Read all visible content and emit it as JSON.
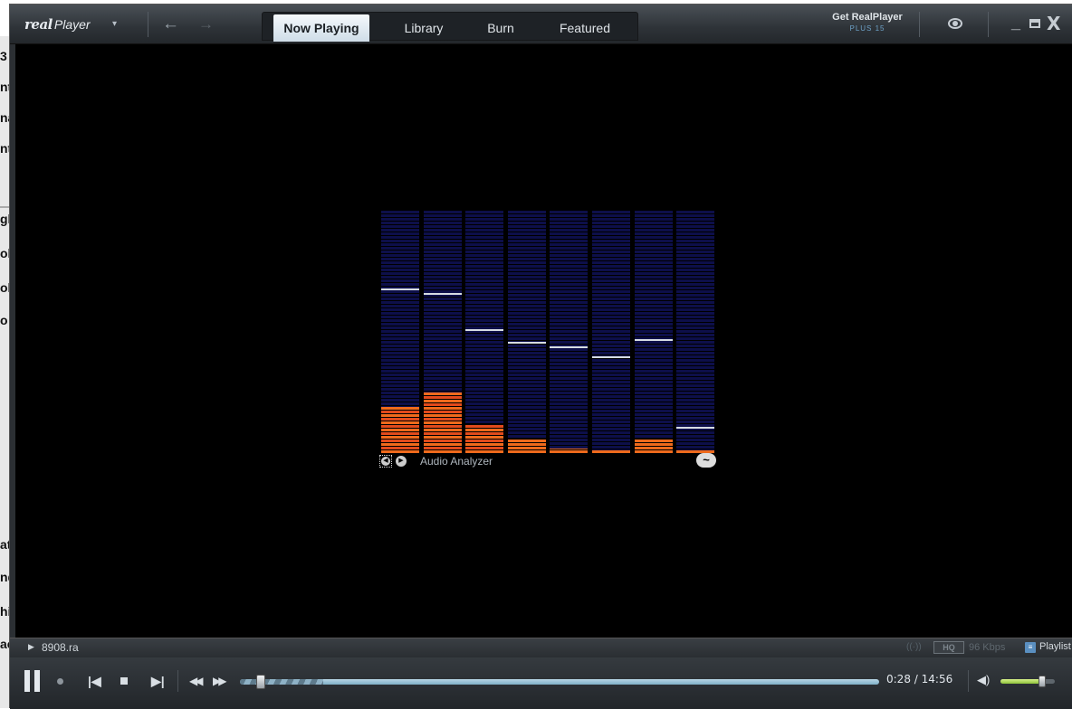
{
  "background_window": {
    "chars": [
      "3",
      "nt",
      "na",
      "nt",
      "gl",
      "ol",
      "ol",
      "o",
      "at",
      "nd",
      "hi",
      "ac"
    ]
  },
  "titlebar": {
    "logo_mark": "real",
    "logo_word": "Player",
    "logo_caret": "▾",
    "back_icon": "←",
    "forward_icon": "→",
    "get_label": "Get RealPlayer",
    "get_sub": "PLUS 15",
    "minimize_icon": "_",
    "close_icon": "X"
  },
  "tabs": [
    {
      "label": "Now Playing",
      "active": true
    },
    {
      "label": "Library",
      "active": false
    },
    {
      "label": "Burn",
      "active": false
    },
    {
      "label": "Featured",
      "active": false
    }
  ],
  "visualizer": {
    "label": "Audio Analyzer",
    "prev_icon": "◀",
    "next_icon": "▶",
    "wave_icon": "~",
    "bands": [
      {
        "level": 0.19,
        "peak": 0.68
      },
      {
        "level": 0.25,
        "peak": 0.66
      },
      {
        "level": 0.12,
        "peak": 0.51
      },
      {
        "level": 0.06,
        "peak": 0.46
      },
      {
        "level": 0.02,
        "peak": 0.44
      },
      {
        "level": 0.01,
        "peak": 0.4
      },
      {
        "level": 0.06,
        "peak": 0.47
      },
      {
        "level": 0.01,
        "peak": 0.11
      }
    ],
    "colors": {
      "off": "#0d0f4a",
      "low": "#ee6a1c",
      "high": "#e24a1c",
      "peak": "#d6dce2"
    }
  },
  "status": {
    "play_icon": "▶",
    "clip_name": "8908.ra",
    "signal_icon": "((·))",
    "hq_label": "HQ",
    "bitrate": "96 Kbps",
    "playlist_icon": "≡",
    "playlist_label": "Playlist"
  },
  "controls": {
    "prev_icon": "|◀",
    "next_icon": "▶|",
    "rewind_icon": "◀◀",
    "ffwd_icon": "▶▶",
    "volume_icon": "◀)",
    "elapsed": "0:28",
    "total": "14:56",
    "time_sep": " / ",
    "seek_position": 0.032,
    "buffered": 0.13,
    "volume_level": 0.77
  },
  "colors": {
    "accent_tab": "#cfdde8",
    "seek": "#7fb0c8",
    "volume": "#8ec43a"
  }
}
